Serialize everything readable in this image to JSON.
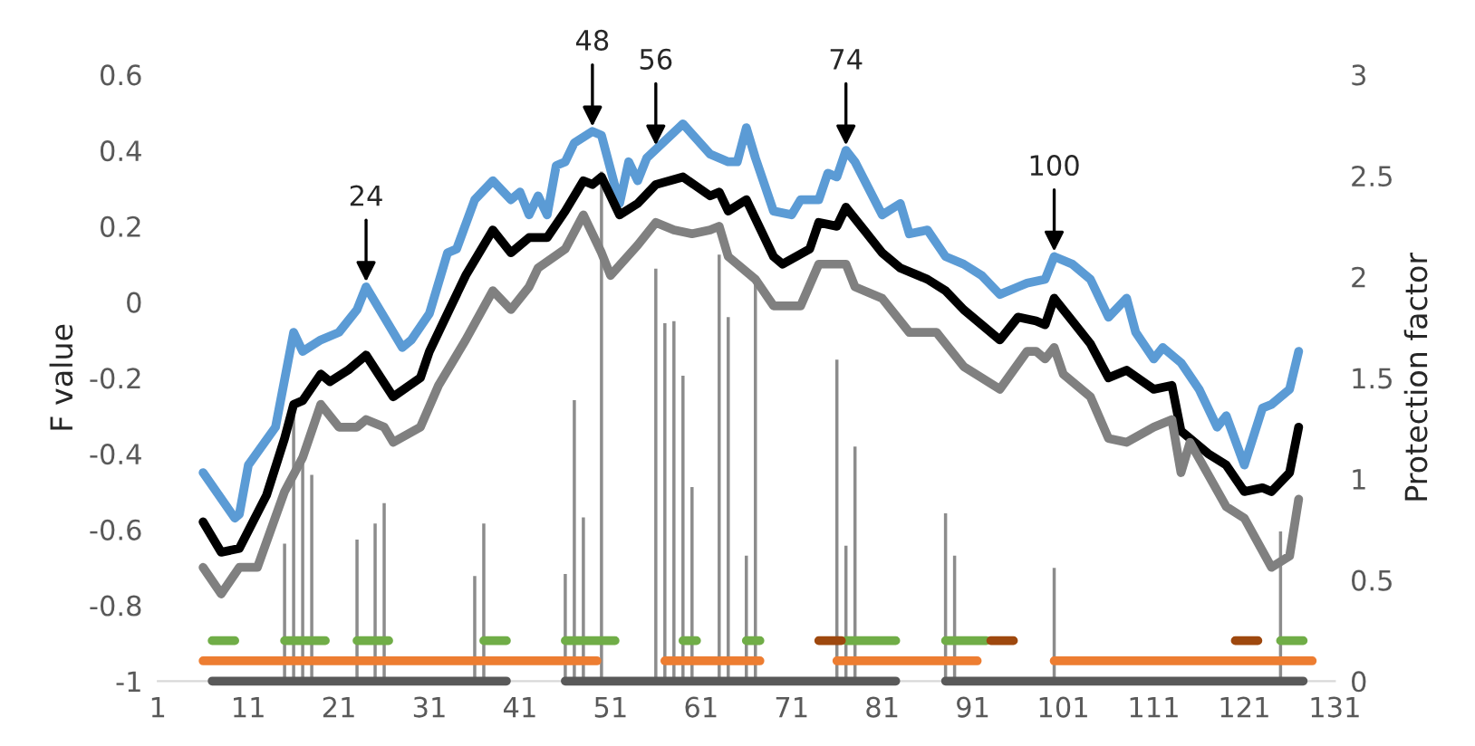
{
  "chart_data": {
    "type": "line",
    "ylabel": "F value",
    "y2label": "Protection factor",
    "xlim": [
      1,
      131
    ],
    "xticks": [
      1,
      11,
      21,
      31,
      41,
      51,
      61,
      71,
      81,
      91,
      101,
      111,
      121,
      131
    ],
    "ylim": [
      -1,
      0.6
    ],
    "yticks": [
      -1,
      -0.8,
      -0.6,
      -0.4,
      -0.2,
      0,
      0.2,
      0.4,
      0.6
    ],
    "y2lim": [
      0,
      3
    ],
    "y2ticks": [
      0,
      0.5,
      1,
      1.5,
      2,
      2.5,
      3
    ],
    "annotations": [
      {
        "text": "24",
        "x": 24,
        "y": 0.04
      },
      {
        "text": "48",
        "x": 49,
        "y": 0.45
      },
      {
        "text": "56",
        "x": 56,
        "y": 0.4
      },
      {
        "text": "74",
        "x": 77,
        "y": 0.4
      },
      {
        "text": "100",
        "x": 100,
        "y": 0.12
      }
    ],
    "series": [
      {
        "type": "bar",
        "axis": "y2",
        "color": "#8c8c8c",
        "x": [
          15,
          16,
          17,
          18,
          23,
          25,
          26,
          36,
          37,
          46,
          47,
          48,
          50,
          56,
          57,
          58,
          59,
          60,
          63,
          64,
          66,
          67,
          76,
          77,
          78,
          88,
          89,
          100,
          125
        ],
        "values": [
          0.68,
          1.35,
          1.13,
          1.02,
          0.7,
          0.78,
          0.88,
          0.52,
          0.78,
          0.53,
          1.39,
          0.81,
          2.52,
          2.04,
          1.77,
          1.78,
          1.51,
          0.96,
          2.11,
          1.8,
          0.62,
          1.99,
          1.59,
          0.67,
          1.16,
          0.83,
          0.62,
          0.56,
          0.74
        ]
      },
      {
        "color": "#5b9bd5",
        "x": [
          6,
          9.5,
          10,
          11,
          14,
          16,
          17,
          19,
          21,
          23,
          24,
          28,
          29,
          31,
          33,
          34,
          36,
          38,
          40,
          41,
          42,
          43,
          44,
          45,
          46,
          47,
          49,
          50,
          52,
          53,
          54,
          55,
          59,
          62,
          64,
          65,
          66,
          67,
          69,
          71,
          72,
          74,
          75,
          76,
          77,
          78,
          81,
          83,
          84,
          86,
          88,
          90,
          92,
          94,
          96,
          97,
          99,
          100,
          102,
          104,
          106,
          108,
          109,
          111,
          112,
          114,
          116,
          118,
          119,
          121,
          123,
          124,
          126,
          127
        ],
        "values": [
          -0.45,
          -0.57,
          -0.56,
          -0.43,
          -0.33,
          -0.08,
          -0.13,
          -0.1,
          -0.08,
          -0.02,
          0.04,
          -0.12,
          -0.1,
          -0.03,
          0.13,
          0.14,
          0.27,
          0.32,
          0.27,
          0.29,
          0.23,
          0.28,
          0.23,
          0.36,
          0.37,
          0.42,
          0.45,
          0.44,
          0.26,
          0.37,
          0.32,
          0.38,
          0.47,
          0.39,
          0.37,
          0.37,
          0.46,
          0.38,
          0.24,
          0.23,
          0.27,
          0.27,
          0.34,
          0.33,
          0.4,
          0.37,
          0.23,
          0.26,
          0.18,
          0.19,
          0.12,
          0.1,
          0.07,
          0.02,
          0.04,
          0.05,
          0.06,
          0.12,
          0.1,
          0.06,
          -0.04,
          0.01,
          -0.08,
          -0.15,
          -0.12,
          -0.16,
          -0.23,
          -0.33,
          -0.3,
          -0.43,
          -0.28,
          -0.27,
          -0.23,
          -0.13
        ]
      },
      {
        "color": "#000000",
        "x": [
          6,
          8,
          10,
          13,
          15,
          16,
          17,
          19,
          20,
          22,
          24,
          27,
          30,
          31,
          33,
          35,
          38,
          40,
          42,
          44,
          46,
          48,
          49,
          50,
          52,
          54,
          56,
          59,
          62,
          63,
          64,
          66,
          69,
          70,
          73,
          74,
          76,
          77,
          79,
          81,
          83,
          86,
          88,
          90,
          92,
          94,
          96,
          98,
          99,
          100,
          102,
          104,
          106,
          108,
          111,
          113,
          114,
          117,
          119,
          121,
          123,
          124,
          126,
          127
        ],
        "values": [
          -0.58,
          -0.66,
          -0.65,
          -0.51,
          -0.36,
          -0.27,
          -0.26,
          -0.19,
          -0.21,
          -0.18,
          -0.14,
          -0.25,
          -0.2,
          -0.13,
          -0.03,
          0.07,
          0.19,
          0.13,
          0.17,
          0.17,
          0.24,
          0.32,
          0.31,
          0.33,
          0.23,
          0.26,
          0.31,
          0.33,
          0.28,
          0.29,
          0.24,
          0.27,
          0.12,
          0.1,
          0.14,
          0.21,
          0.2,
          0.25,
          0.19,
          0.13,
          0.09,
          0.06,
          0.03,
          -0.02,
          -0.06,
          -0.1,
          -0.04,
          -0.05,
          -0.06,
          0.01,
          -0.05,
          -0.11,
          -0.2,
          -0.18,
          -0.23,
          -0.22,
          -0.34,
          -0.4,
          -0.43,
          -0.5,
          -0.49,
          -0.5,
          -0.45,
          -0.33
        ]
      },
      {
        "color": "#808080",
        "x": [
          6,
          8,
          10,
          12,
          15,
          17,
          19,
          21,
          23,
          24,
          26,
          27,
          30,
          32,
          35,
          38,
          40,
          42,
          43,
          46,
          48,
          50,
          51,
          54,
          56,
          58,
          60,
          62,
          63,
          64,
          67,
          69,
          72,
          74,
          77,
          78,
          81,
          84,
          87,
          90,
          92,
          94,
          97,
          98,
          99,
          100,
          101,
          104,
          106,
          108,
          111,
          113,
          114,
          115,
          119,
          121,
          124,
          126,
          127
        ],
        "values": [
          -0.7,
          -0.77,
          -0.7,
          -0.7,
          -0.5,
          -0.41,
          -0.27,
          -0.33,
          -0.33,
          -0.31,
          -0.33,
          -0.37,
          -0.33,
          -0.22,
          -0.1,
          0.03,
          -0.02,
          0.04,
          0.09,
          0.14,
          0.23,
          0.13,
          0.07,
          0.15,
          0.21,
          0.19,
          0.18,
          0.19,
          0.2,
          0.12,
          0.06,
          -0.01,
          -0.01,
          0.1,
          0.1,
          0.04,
          0.01,
          -0.08,
          -0.08,
          -0.17,
          -0.2,
          -0.23,
          -0.13,
          -0.13,
          -0.15,
          -0.12,
          -0.19,
          -0.25,
          -0.36,
          -0.37,
          -0.33,
          -0.31,
          -0.45,
          -0.37,
          -0.54,
          -0.57,
          -0.7,
          -0.67,
          -0.52
        ]
      },
      {
        "type": "line",
        "axis": "y2",
        "color": "#595959",
        "x": [
          7,
          39.5,
          43,
          46,
          82.5,
          85,
          88,
          127.5
        ],
        "values": [
          0,
          0,
          null,
          0,
          0,
          null,
          0,
          0
        ]
      },
      {
        "type": "line",
        "axis": "y2",
        "color": "#ed7d31",
        "x": [
          6,
          49.5,
          53,
          57,
          67.5,
          72,
          76,
          91.5,
          96,
          100,
          128.5
        ],
        "values": [
          0.1,
          0.1,
          null,
          0.1,
          0.1,
          null,
          0.1,
          0.1,
          null,
          0.1,
          0.1
        ]
      },
      {
        "type": "line",
        "axis": "y2",
        "color": "#70ad47",
        "x": [
          7,
          9.5,
          12,
          15,
          19.5,
          21,
          23,
          26.5,
          30,
          37,
          39.5,
          43,
          46,
          51.5,
          55,
          59,
          60.5,
          63,
          66,
          67.5,
          72,
          77,
          82.5,
          85,
          88,
          92.5,
          100,
          125,
          127.5
        ],
        "values": [
          0.2,
          0.2,
          null,
          0.2,
          0.2,
          null,
          0.2,
          0.2,
          null,
          0.2,
          0.2,
          null,
          0.2,
          0.2,
          null,
          0.2,
          0.2,
          null,
          0.2,
          0.2,
          null,
          0.2,
          0.2,
          null,
          0.2,
          0.2,
          null,
          0.2,
          0.2
        ]
      },
      {
        "type": "line",
        "axis": "y2",
        "color": "#9e480e",
        "x": [
          74,
          76.5,
          85,
          93,
          95.5,
          110,
          120,
          122.5
        ],
        "values": [
          0.2,
          0.2,
          null,
          0.2,
          0.2,
          null,
          0.2,
          0.2
        ]
      }
    ]
  }
}
